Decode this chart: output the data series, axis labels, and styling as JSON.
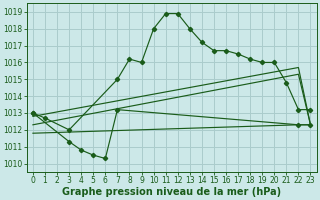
{
  "bg_color": "#cce8e8",
  "grid_color": "#aacccc",
  "line_color": "#1a5c1a",
  "xlabel": "Graphe pression niveau de la mer (hPa)",
  "xlabel_color": "#1a5c1a",
  "ylim": [
    1009.5,
    1019.5
  ],
  "xlim": [
    -0.5,
    23.5
  ],
  "yticks": [
    1010,
    1011,
    1012,
    1013,
    1014,
    1015,
    1016,
    1017,
    1018,
    1019
  ],
  "xticks": [
    0,
    1,
    2,
    3,
    4,
    5,
    6,
    7,
    8,
    9,
    10,
    11,
    12,
    13,
    14,
    15,
    16,
    17,
    18,
    19,
    20,
    21,
    22,
    23
  ],
  "curve1_x": [
    0,
    1,
    3,
    7,
    8,
    9,
    10,
    11,
    12,
    13,
    14,
    15,
    16,
    17,
    18,
    19,
    20,
    21,
    22,
    23
  ],
  "curve1_y": [
    1013.0,
    1012.7,
    1012.0,
    1015.0,
    1016.2,
    1016.0,
    1018.0,
    1018.9,
    1018.9,
    1018.0,
    1017.2,
    1016.7,
    1016.7,
    1016.5,
    1016.2,
    1016.0,
    1016.0,
    1014.8,
    1013.2,
    1013.2
  ],
  "curve2_x": [
    0,
    3,
    4,
    5,
    6,
    7,
    22,
    23
  ],
  "curve2_y": [
    1013.0,
    1011.3,
    1010.8,
    1010.5,
    1010.3,
    1013.2,
    1012.3,
    1012.3
  ],
  "curve3_x": [
    0,
    22,
    23
  ],
  "curve3_y": [
    1012.8,
    1015.7,
    1012.3
  ],
  "curve4_x": [
    0,
    22,
    23
  ],
  "curve4_y": [
    1012.3,
    1015.3,
    1012.3
  ],
  "curve5_x": [
    0,
    22,
    23
  ],
  "curve5_y": [
    1011.8,
    1012.3,
    1012.3
  ],
  "tick_fontsize": 5.5,
  "xlabel_fontsize": 7.0
}
